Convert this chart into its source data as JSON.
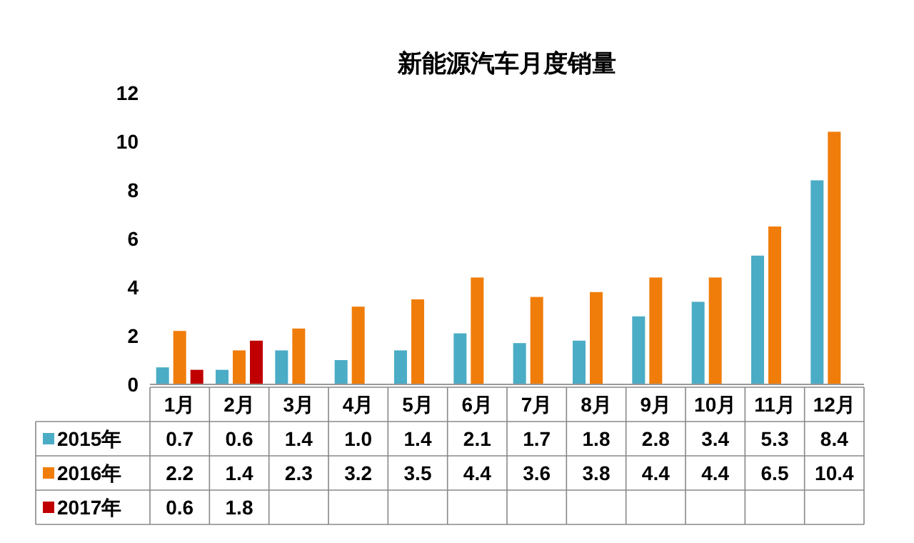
{
  "chart_data": {
    "type": "bar",
    "title": "新能源汽车月度销量",
    "categories": [
      "1月",
      "2月",
      "3月",
      "4月",
      "5月",
      "6月",
      "7月",
      "8月",
      "9月",
      "10月",
      "11月",
      "12月"
    ],
    "series": [
      {
        "name": "2015年",
        "color": "#4bacc6",
        "values": [
          0.7,
          0.6,
          1.4,
          1.0,
          1.4,
          2.1,
          1.7,
          1.8,
          2.8,
          3.4,
          5.3,
          8.4
        ],
        "value_labels": [
          "0.7",
          "0.6",
          "1.4",
          "1.0",
          "1.4",
          "2.1",
          "1.7",
          "1.8",
          "2.8",
          "3.4",
          "5.3",
          "8.4"
        ]
      },
      {
        "name": "2016年",
        "color": "#f07d0a",
        "values": [
          2.2,
          1.4,
          2.3,
          3.2,
          3.5,
          4.4,
          3.6,
          3.8,
          4.4,
          4.4,
          6.5,
          10.4
        ]
      },
      {
        "name": "2017年",
        "color": "#c00000",
        "values": [
          0.6,
          1.8,
          null,
          null,
          null,
          null,
          null,
          null,
          null,
          null,
          null,
          null
        ]
      }
    ],
    "ylim": [
      0,
      12
    ],
    "yticks": [
      0,
      2,
      4,
      6,
      8,
      10,
      12
    ],
    "grid": false,
    "legend": "bottom",
    "data_labels": true
  }
}
